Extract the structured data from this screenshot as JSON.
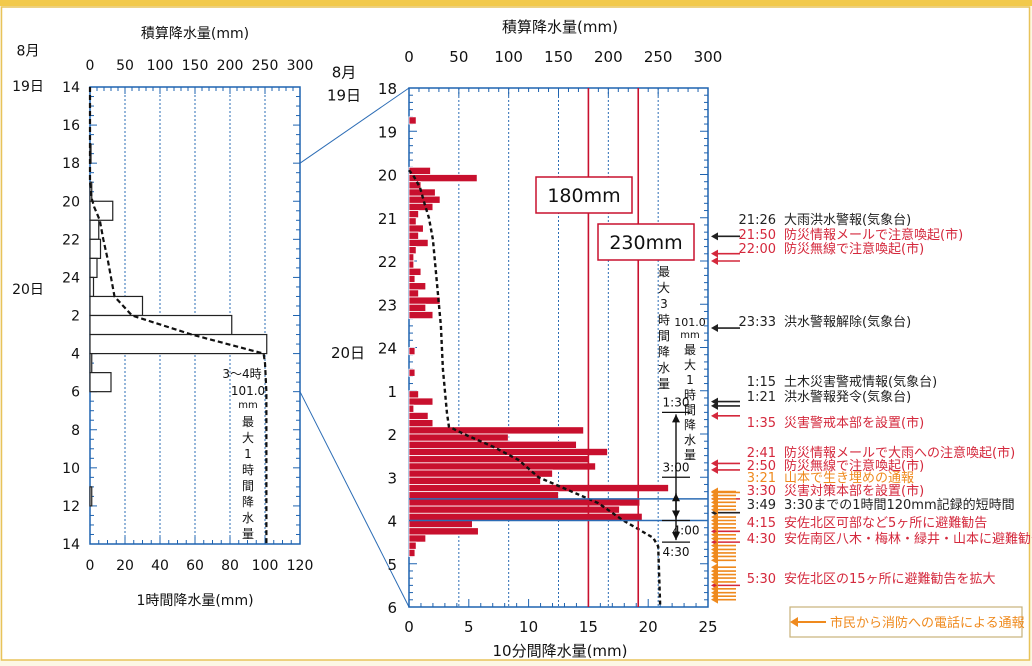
{
  "chart_data": [
    {
      "type": "bar",
      "orientation": "horizontal",
      "x_top_label": "積算降水量(mm)",
      "x_top_ticks": [
        "0",
        "50",
        "100",
        "150",
        "200",
        "250",
        "300"
      ],
      "x_top_range": [
        0,
        300
      ],
      "x_bottom_label": "1時間降水量(mm)",
      "x_bottom_ticks": [
        "0",
        "20",
        "40",
        "60",
        "80",
        "100",
        "120"
      ],
      "x_bottom_range": [
        0,
        120
      ],
      "y_date_labels": [
        {
          "text": "8月",
          "hour": 13.5
        },
        {
          "text": "19日",
          "hour": 14
        },
        {
          "text": "20日",
          "hour": 24.6
        }
      ],
      "y_ticks": [
        {
          "hour": 14,
          "label": "14"
        },
        {
          "hour": 16,
          "label": "16"
        },
        {
          "hour": 18,
          "label": "18"
        },
        {
          "hour": 20,
          "label": "20"
        },
        {
          "hour": 22,
          "label": "22"
        },
        {
          "hour": 24,
          "label": "24"
        },
        {
          "hour": 26,
          "label": "2"
        },
        {
          "hour": 28,
          "label": "4"
        },
        {
          "hour": 30,
          "label": "6"
        },
        {
          "hour": 32,
          "label": "8"
        },
        {
          "hour": 34,
          "label": "10"
        },
        {
          "hour": 36,
          "label": "12"
        },
        {
          "hour": 38,
          "label": "14"
        }
      ],
      "y_range": [
        14,
        38
      ],
      "bars": [
        {
          "hour": 17.5,
          "value": 0.5
        },
        {
          "hour": 19.5,
          "value": 1
        },
        {
          "hour": 20.5,
          "value": 13
        },
        {
          "hour": 21.5,
          "value": 5
        },
        {
          "hour": 22.5,
          "value": 6
        },
        {
          "hour": 23.5,
          "value": 4
        },
        {
          "hour": 24.5,
          "value": 2
        },
        {
          "hour": 25.5,
          "value": 30
        },
        {
          "hour": 26.5,
          "value": 81
        },
        {
          "hour": 27.5,
          "value": 101
        },
        {
          "hour": 28.5,
          "value": 1
        },
        {
          "hour": 29.5,
          "value": 12
        },
        {
          "hour": 35.5,
          "value": 1
        }
      ],
      "cumulative": [
        {
          "hour": 14,
          "value": 0
        },
        {
          "hour": 19,
          "value": 0
        },
        {
          "hour": 19.8,
          "value": 2
        },
        {
          "hour": 20.3,
          "value": 6
        },
        {
          "hour": 21,
          "value": 14
        },
        {
          "hour": 22,
          "value": 19
        },
        {
          "hour": 23,
          "value": 25
        },
        {
          "hour": 24,
          "value": 30
        },
        {
          "hour": 25,
          "value": 35
        },
        {
          "hour": 26,
          "value": 60
        },
        {
          "hour": 27,
          "value": 145
        },
        {
          "hour": 28,
          "value": 248
        },
        {
          "hour": 28.5,
          "value": 250
        },
        {
          "hour": 30,
          "value": 252
        },
        {
          "hour": 38,
          "value": 252
        }
      ],
      "annotation_time": "3～4時",
      "annotation_value": "101.0",
      "annotation_unit": "mm",
      "annotation_label": "最大1時間降水量"
    },
    {
      "type": "bar",
      "orientation": "horizontal",
      "x_top_label": "積算降水量(mm)",
      "x_top_ticks": [
        "0",
        "50",
        "100",
        "150",
        "200",
        "250",
        "300"
      ],
      "x_top_range": [
        0,
        300
      ],
      "x_bottom_label": "10分間降水量(mm)",
      "x_bottom_ticks": [
        "0",
        "5",
        "10",
        "15",
        "20",
        "25"
      ],
      "x_bottom_range": [
        0,
        25
      ],
      "y_date_labels": [
        {
          "text": "8月",
          "hour": 17.9
        },
        {
          "text": "19日",
          "hour": 18.15
        },
        {
          "text": "20日",
          "hour": 24.1
        }
      ],
      "y_ticks": [
        {
          "hour": 18,
          "label": "18"
        },
        {
          "hour": 19,
          "label": "19"
        },
        {
          "hour": 20,
          "label": "20"
        },
        {
          "hour": 21,
          "label": "21"
        },
        {
          "hour": 22,
          "label": "22"
        },
        {
          "hour": 23,
          "label": "23"
        },
        {
          "hour": 24,
          "label": "24"
        },
        {
          "hour": 25,
          "label": "1"
        },
        {
          "hour": 26,
          "label": "2"
        },
        {
          "hour": 27,
          "label": "3"
        },
        {
          "hour": 28,
          "label": "4"
        },
        {
          "hour": 29,
          "label": "5"
        },
        {
          "hour": 30,
          "label": "6"
        }
      ],
      "y_range": [
        18,
        30
      ],
      "ref_lines": [
        {
          "label": "180mm",
          "value": 180
        },
        {
          "label": "230mm",
          "value": 230
        }
      ],
      "bars": [
        {
          "start": 18.667,
          "value": 0.6
        },
        {
          "start": 19.833,
          "value": 1.8
        },
        {
          "start": 20.0,
          "value": 5.7
        },
        {
          "start": 20.167,
          "value": 1.0
        },
        {
          "start": 20.333,
          "value": 2.2
        },
        {
          "start": 20.5,
          "value": 2.6
        },
        {
          "start": 20.667,
          "value": 2.0
        },
        {
          "start": 20.833,
          "value": 0.8
        },
        {
          "start": 21.0,
          "value": 0.6
        },
        {
          "start": 21.167,
          "value": 1.2
        },
        {
          "start": 21.333,
          "value": 0.8
        },
        {
          "start": 21.5,
          "value": 1.6
        },
        {
          "start": 21.667,
          "value": 0.6
        },
        {
          "start": 21.833,
          "value": 0.4
        },
        {
          "start": 22.0,
          "value": 0.4
        },
        {
          "start": 22.167,
          "value": 1.0
        },
        {
          "start": 22.333,
          "value": 0.5
        },
        {
          "start": 22.5,
          "value": 1.4
        },
        {
          "start": 22.667,
          "value": 0.8
        },
        {
          "start": 22.833,
          "value": 2.6
        },
        {
          "start": 23.0,
          "value": 1.4
        },
        {
          "start": 23.167,
          "value": 2.0
        },
        {
          "start": 24.0,
          "value": 0.5
        },
        {
          "start": 24.5,
          "value": 0.5
        },
        {
          "start": 25.0,
          "value": 0.8
        },
        {
          "start": 25.167,
          "value": 2.0
        },
        {
          "start": 25.333,
          "value": 0.4
        },
        {
          "start": 25.5,
          "value": 1.6
        },
        {
          "start": 25.667,
          "value": 2.0
        },
        {
          "start": 25.833,
          "value": 14.6
        },
        {
          "start": 26.0,
          "value": 8.3
        },
        {
          "start": 26.167,
          "value": 14.0
        },
        {
          "start": 26.333,
          "value": 16.6
        },
        {
          "start": 26.5,
          "value": 15.0
        },
        {
          "start": 26.667,
          "value": 15.6
        },
        {
          "start": 26.833,
          "value": 12.0
        },
        {
          "start": 27.0,
          "value": 11.0
        },
        {
          "start": 27.167,
          "value": 21.7
        },
        {
          "start": 27.333,
          "value": 12.5
        },
        {
          "start": 27.5,
          "value": 19.3
        },
        {
          "start": 27.667,
          "value": 17.6
        },
        {
          "start": 27.833,
          "value": 19.5
        },
        {
          "start": 28.0,
          "value": 5.3
        },
        {
          "start": 28.167,
          "value": 5.8
        },
        {
          "start": 28.333,
          "value": 1.4
        },
        {
          "start": 28.5,
          "value": 0.6
        },
        {
          "start": 28.667,
          "value": 0.5
        }
      ],
      "cumulative": [
        {
          "hour": 19.9,
          "value": 0
        },
        {
          "hour": 20.05,
          "value": 5
        },
        {
          "hour": 20.3,
          "value": 11
        },
        {
          "hour": 20.7,
          "value": 16
        },
        {
          "hour": 21,
          "value": 20
        },
        {
          "hour": 21.5,
          "value": 24
        },
        {
          "hour": 22,
          "value": 26
        },
        {
          "hour": 22.5,
          "value": 28
        },
        {
          "hour": 23,
          "value": 30
        },
        {
          "hour": 23.5,
          "value": 32
        },
        {
          "hour": 24,
          "value": 33
        },
        {
          "hour": 24.5,
          "value": 34
        },
        {
          "hour": 25,
          "value": 36
        },
        {
          "hour": 25.5,
          "value": 38
        },
        {
          "hour": 25.83,
          "value": 40
        },
        {
          "hour": 26,
          "value": 55
        },
        {
          "hour": 26.3,
          "value": 85
        },
        {
          "hour": 26.6,
          "value": 110
        },
        {
          "hour": 27,
          "value": 130
        },
        {
          "hour": 27.3,
          "value": 160
        },
        {
          "hour": 27.6,
          "value": 190
        },
        {
          "hour": 28,
          "value": 215
        },
        {
          "hour": 28.2,
          "value": 230
        },
        {
          "hour": 28.4,
          "value": 245
        },
        {
          "hour": 28.6,
          "value": 250
        },
        {
          "hour": 30,
          "value": 252
        }
      ],
      "annotations": {
        "max3h_label": "最大3時間降水量",
        "max1h_value": "101.0",
        "max1h_unit": "mm",
        "max1h_label": "最大1時間降水量",
        "time_marks": [
          "1:30",
          "3:00",
          "4:00",
          "4:30"
        ]
      },
      "events": [
        {
          "time": "21:26",
          "text": "大雨洪水警報(気象台)",
          "color": "#222222",
          "arrow": "#222222",
          "hour": 21.43
        },
        {
          "time": "21:50",
          "text": "防災情報メールで注意喚起(市)",
          "color": "#d4283c",
          "arrow": "#d4283c",
          "hour": 21.83
        },
        {
          "time": "22:00",
          "text": "防災無線で注意喚起(市)",
          "color": "#d4283c",
          "arrow": "#d4283c",
          "hour": 22.0
        },
        {
          "time": "23:33",
          "text": "洪水警報解除(気象台)",
          "color": "#222222",
          "arrow": "#222222",
          "hour": 23.55
        },
        {
          "time": "1:15",
          "text": "土木災害警戒情報(気象台)",
          "color": "#222222",
          "arrow": "#222222",
          "hour": 25.25
        },
        {
          "time": "1:21",
          "text": "洪水警報発令(気象台)",
          "color": "#222222",
          "arrow": "#222222",
          "hour": 25.35
        },
        {
          "time": "1:35",
          "text": "災害警戒本部を設置(市)",
          "color": "#d4283c",
          "arrow": "#d4283c",
          "hour": 25.58
        },
        {
          "time": "2:41",
          "text": "防災情報メールで大雨への注意喚起(市)",
          "color": "#d4283c",
          "arrow": "#d4283c",
          "hour": 26.68
        },
        {
          "time": "2:50",
          "text": "防災無線で注意喚起(市)",
          "color": "#d4283c",
          "arrow": "#d4283c",
          "hour": 26.83
        },
        {
          "time": "3:21",
          "text": "山本で生き埋めの通報",
          "color": "#ef8a1e",
          "arrow": "#ef8a1e",
          "hour": 27.35
        },
        {
          "time": "3:30",
          "text": "災害対策本部を設置(市)",
          "color": "#d4283c",
          "arrow": "#d4283c",
          "hour": 27.5
        },
        {
          "time": "3:49",
          "text": "3:30までの1時間120mm記録的短時間",
          "color": "#222222",
          "arrow": "#222222",
          "hour": 27.82
        },
        {
          "time": "4:15",
          "text": "安佐北区可部など5ヶ所に避難勧告",
          "color": "#d4283c",
          "arrow": "#d4283c",
          "hour": 28.25
        },
        {
          "time": "4:30",
          "text": "安佐南区八木・梅林・緑井・山本に避難勧告",
          "color": "#d4283c",
          "arrow": "#d4283c",
          "hour": 28.5
        },
        {
          "time": "5:30",
          "text": "安佐北区の15ヶ所に避難勧告を拡大",
          "color": "#d4283c",
          "arrow": "#d4283c",
          "hour": 29.5
        }
      ],
      "orange_arrow_hours": [
        27.33,
        27.42,
        27.5,
        27.58,
        27.67,
        27.75,
        27.92,
        28.0,
        28.08,
        28.17,
        28.33,
        28.42,
        28.58,
        28.67,
        28.75,
        28.83,
        28.92,
        29.08,
        29.17,
        29.25,
        29.33,
        29.42,
        29.58,
        29.67,
        29.75,
        29.83
      ],
      "legend_text": "市民から消防への電話による通報",
      "legend_color": "#ef8a1e"
    }
  ]
}
